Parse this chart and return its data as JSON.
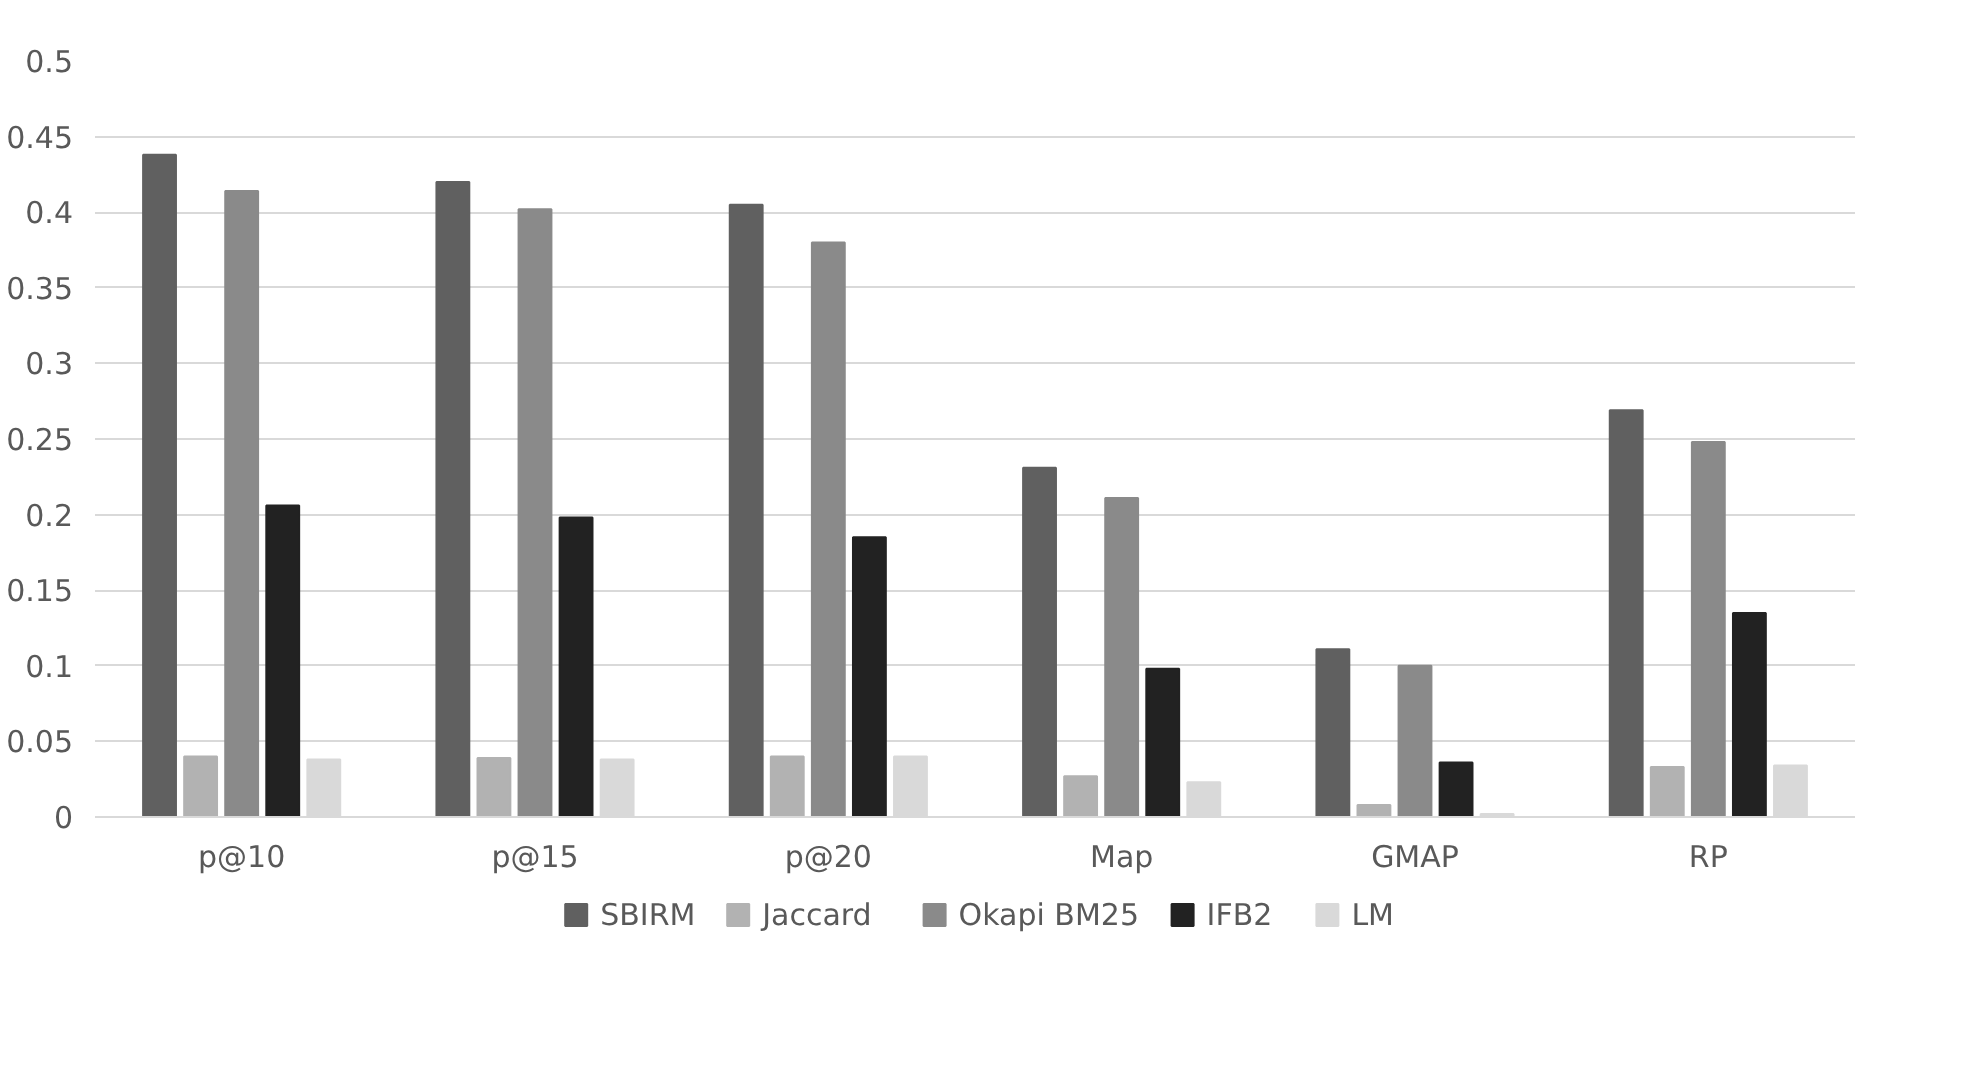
{
  "chart_data": {
    "type": "bar",
    "categories": [
      "p@10",
      "p@15",
      "p@20",
      "Map",
      "GMAP",
      "RP"
    ],
    "series": [
      {
        "name": "SBIRM",
        "color": "#606060",
        "values": [
          0.438,
          0.42,
          0.405,
          0.231,
          0.111,
          0.269
        ]
      },
      {
        "name": "Jaccard",
        "color": "#b2b2b2",
        "values": [
          0.04,
          0.039,
          0.04,
          0.027,
          0.008,
          0.033
        ]
      },
      {
        "name": "Okapi BM25",
        "color": "#8a8a8a",
        "values": [
          0.414,
          0.402,
          0.38,
          0.211,
          0.1,
          0.248
        ]
      },
      {
        "name": "IFB2",
        "color": "#222222",
        "values": [
          0.206,
          0.198,
          0.185,
          0.098,
          0.036,
          0.135
        ]
      },
      {
        "name": "LM",
        "color": "#d9d9d9",
        "values": [
          0.038,
          0.038,
          0.04,
          0.023,
          0.002,
          0.034
        ]
      }
    ],
    "ylim": [
      0,
      0.5
    ],
    "yticks": [
      0,
      0.05,
      0.1,
      0.15,
      0.2,
      0.25,
      0.3,
      0.35,
      0.4,
      0.45,
      0.5
    ],
    "grid": "y",
    "legend": "bottom"
  }
}
